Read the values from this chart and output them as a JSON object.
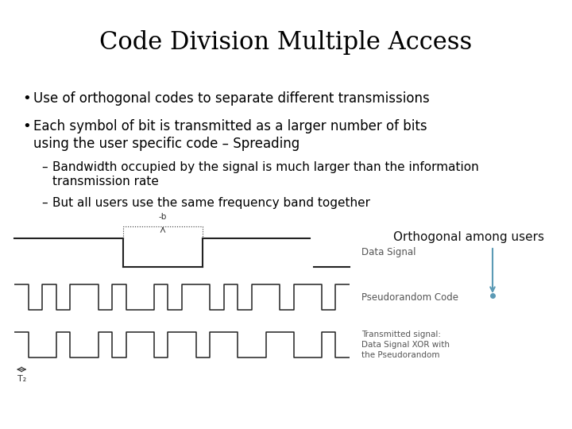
{
  "title": "Code Division Multiple Access",
  "bullet1": "Use of orthogonal codes to separate different transmissions",
  "bullet2a": "Each symbol of bit is transmitted as a larger number of bits",
  "bullet2b": "using the user specific code – Spreading",
  "sub1a": "Bandwidth occupied by the signal is much larger than the information",
  "sub1b": "transmission rate",
  "sub2": "But all users use the same frequency band together",
  "orthogonal_label": "Orthogonal among users",
  "data_signal_label": "Data Signal",
  "pseudo_label": "Pseudorandom Code",
  "transmitted_label": "Transmitted signal:\nData Signal XOR with\nthe Pseudorandom",
  "Tb_label": "-b",
  "Tc_label": "T₂",
  "bg_color": "#ffffff",
  "text_color": "#000000",
  "arrow_color": "#5b9ab5",
  "pseudo_bits": [
    1,
    0,
    1,
    0,
    1,
    1,
    0,
    1,
    0,
    0,
    1,
    0,
    1,
    1,
    0,
    1,
    0,
    1,
    1,
    0,
    1,
    1,
    0,
    1
  ],
  "xor_bits": [
    1,
    0,
    0,
    1,
    0,
    0,
    1,
    0,
    1,
    1,
    0,
    1,
    1,
    0,
    1,
    1,
    0,
    0,
    1,
    1,
    0,
    0,
    1,
    0
  ]
}
